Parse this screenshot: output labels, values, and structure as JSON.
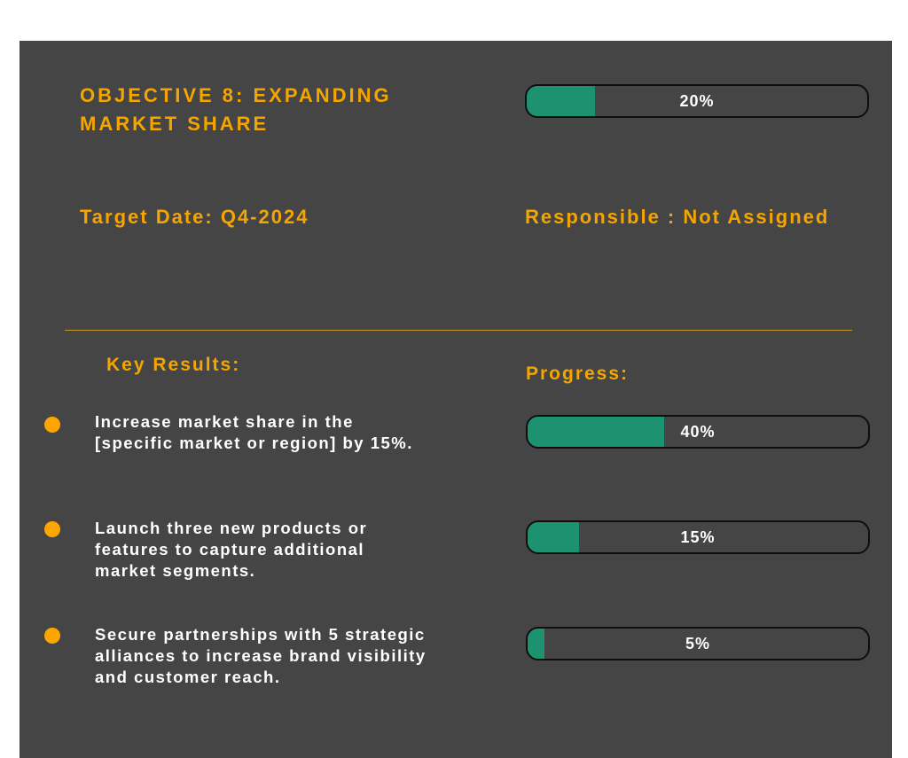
{
  "objective": {
    "title": "OBJECTIVE 8: EXPANDING MARKET SHARE",
    "progress_percent": 20,
    "progress_label": "20%",
    "target_date": "Target Date: Q4-2024",
    "responsible": "Responsible : Not Assigned"
  },
  "headings": {
    "key_results": "Key Results:",
    "progress": "Progress:"
  },
  "key_results": [
    {
      "text": "Increase market share in the [specific market or region] by 15%.",
      "progress_percent": 40,
      "progress_label": "40%"
    },
    {
      "text": "Launch three new products or features to capture additional market segments.",
      "progress_percent": 15,
      "progress_label": "15%"
    },
    {
      "text": "Secure partnerships with 5 strategic alliances to increase brand visibility and customer reach.",
      "progress_percent": 5,
      "progress_label": "5%"
    }
  ],
  "colors": {
    "background": "#454545",
    "accent": "#f5a500",
    "bullet": "#ffa500",
    "progress_fill": "#1d9270",
    "text": "#ffffff"
  }
}
